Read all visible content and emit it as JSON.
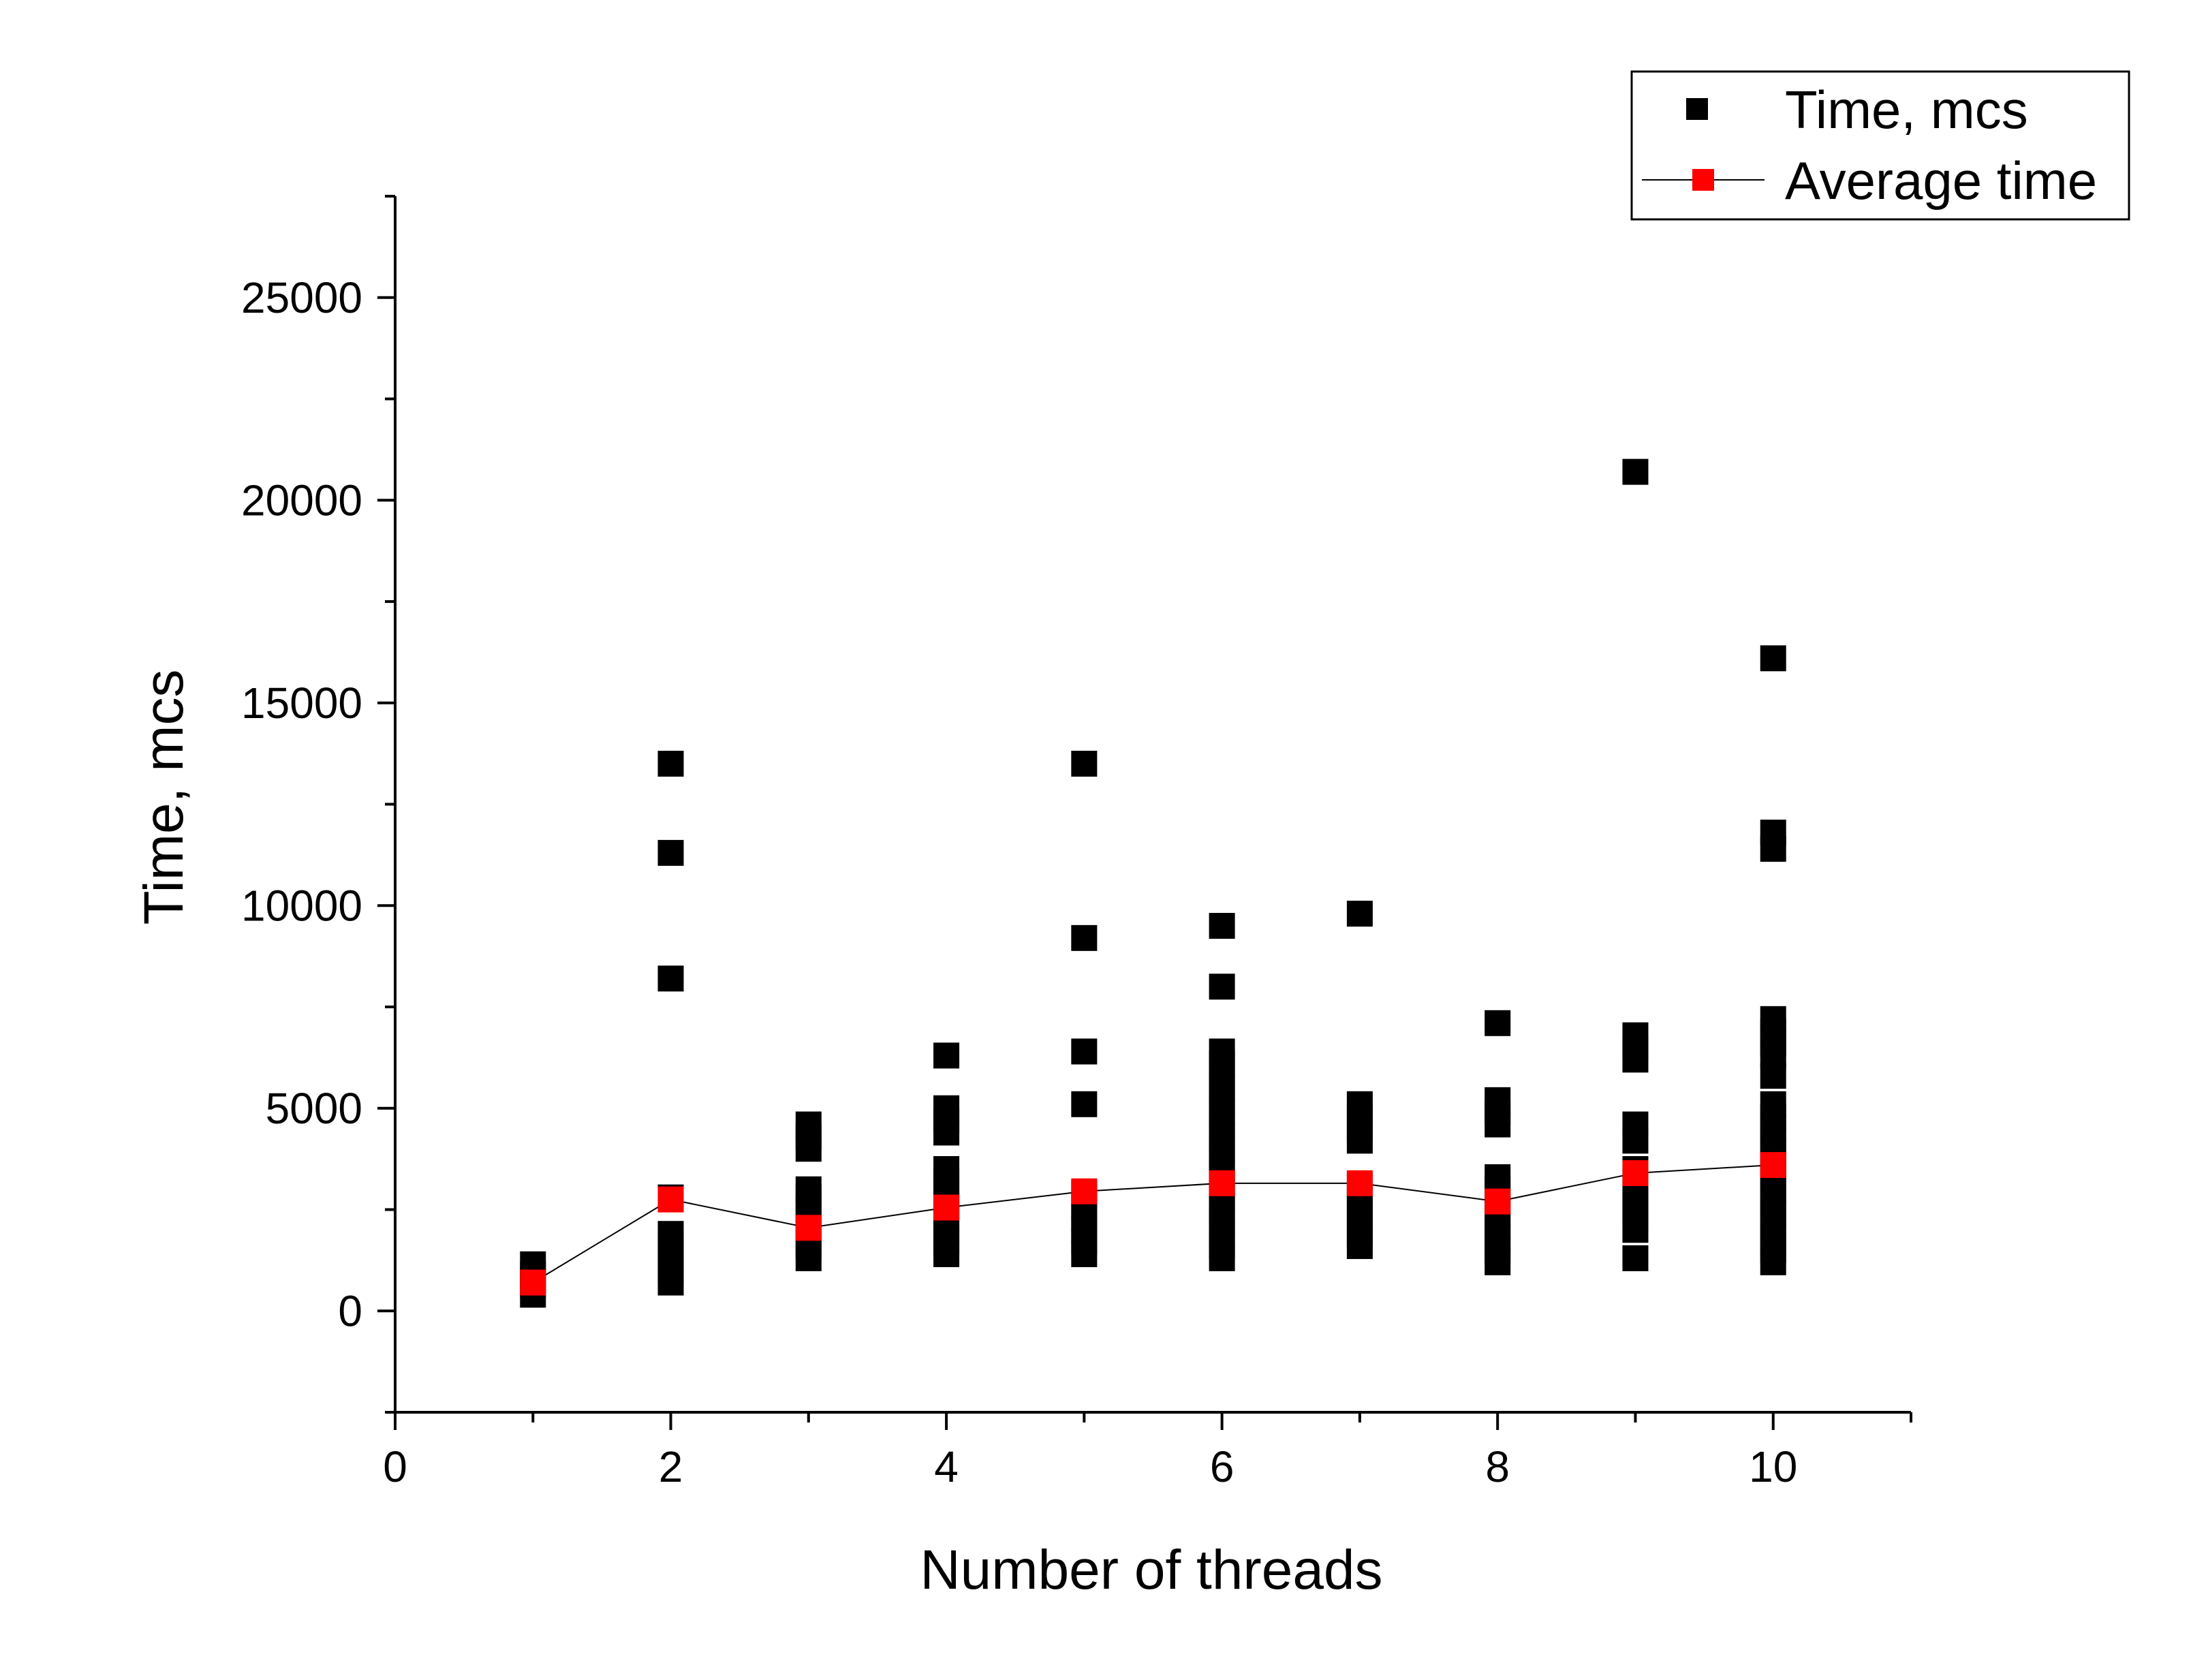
{
  "chart_data": {
    "type": "scatter",
    "title": "",
    "xlabel": "Number of threads",
    "ylabel": "Time, mcs",
    "xlim": [
      0,
      11
    ],
    "ylim": [
      -2500,
      27500
    ],
    "xticks": [
      0,
      2,
      4,
      6,
      8,
      10
    ],
    "xtick_labels": [
      "0",
      "2",
      "4",
      "6",
      "8",
      "10"
    ],
    "yticks": [
      0,
      5000,
      10000,
      15000,
      20000,
      25000
    ],
    "ytick_labels": [
      "0",
      "5000",
      "10000",
      "15000",
      "20000",
      "25000"
    ],
    "grid": false,
    "legend_position": "top-right",
    "series": [
      {
        "name": "Time, mcs",
        "kind": "scatter",
        "color": "#000000",
        "marker": "square",
        "points": [
          [
            1,
            400
          ],
          [
            1,
            650
          ],
          [
            1,
            900
          ],
          [
            1,
            1150
          ],
          [
            2,
            700
          ],
          [
            2,
            1000
          ],
          [
            2,
            1300
          ],
          [
            2,
            1600
          ],
          [
            2,
            1900
          ],
          [
            2,
            2800
          ],
          [
            2,
            8200
          ],
          [
            2,
            11300
          ],
          [
            2,
            13500
          ],
          [
            3,
            1300
          ],
          [
            3,
            1600
          ],
          [
            3,
            1900
          ],
          [
            3,
            2200
          ],
          [
            3,
            2500
          ],
          [
            3,
            2800
          ],
          [
            3,
            3000
          ],
          [
            3,
            4000
          ],
          [
            3,
            4300
          ],
          [
            3,
            4600
          ],
          [
            4,
            1400
          ],
          [
            4,
            1700
          ],
          [
            4,
            2000
          ],
          [
            4,
            2300
          ],
          [
            4,
            2600
          ],
          [
            4,
            2900
          ],
          [
            4,
            3200
          ],
          [
            4,
            3500
          ],
          [
            4,
            4400
          ],
          [
            4,
            4700
          ],
          [
            4,
            5000
          ],
          [
            4,
            6300
          ],
          [
            5,
            1400
          ],
          [
            5,
            1700
          ],
          [
            5,
            2000
          ],
          [
            5,
            2300
          ],
          [
            5,
            2600
          ],
          [
            5,
            2900
          ],
          [
            5,
            5100
          ],
          [
            5,
            6400
          ],
          [
            5,
            9200
          ],
          [
            5,
            13500
          ],
          [
            6,
            1300
          ],
          [
            6,
            1600
          ],
          [
            6,
            1900
          ],
          [
            6,
            2200
          ],
          [
            6,
            2500
          ],
          [
            6,
            2800
          ],
          [
            6,
            3100
          ],
          [
            6,
            3400
          ],
          [
            6,
            3700
          ],
          [
            6,
            4000
          ],
          [
            6,
            4300
          ],
          [
            6,
            4600
          ],
          [
            6,
            4900
          ],
          [
            6,
            5200
          ],
          [
            6,
            5500
          ],
          [
            6,
            5800
          ],
          [
            6,
            6100
          ],
          [
            6,
            6400
          ],
          [
            6,
            8000
          ],
          [
            6,
            9500
          ],
          [
            7,
            1600
          ],
          [
            7,
            1900
          ],
          [
            7,
            2200
          ],
          [
            7,
            2500
          ],
          [
            7,
            2800
          ],
          [
            7,
            3100
          ],
          [
            7,
            4200
          ],
          [
            7,
            4500
          ],
          [
            7,
            4800
          ],
          [
            7,
            5100
          ],
          [
            7,
            9800
          ],
          [
            8,
            1200
          ],
          [
            8,
            1500
          ],
          [
            8,
            1800
          ],
          [
            8,
            2100
          ],
          [
            8,
            2400
          ],
          [
            8,
            2700
          ],
          [
            8,
            3000
          ],
          [
            8,
            3300
          ],
          [
            8,
            4600
          ],
          [
            8,
            4900
          ],
          [
            8,
            5200
          ],
          [
            8,
            7100
          ],
          [
            9,
            1300
          ],
          [
            9,
            2000
          ],
          [
            9,
            2300
          ],
          [
            9,
            2600
          ],
          [
            9,
            2900
          ],
          [
            9,
            3200
          ],
          [
            9,
            3500
          ],
          [
            9,
            4200
          ],
          [
            9,
            4600
          ],
          [
            9,
            6200
          ],
          [
            9,
            6500
          ],
          [
            9,
            6800
          ],
          [
            9,
            20700
          ],
          [
            10,
            1200
          ],
          [
            10,
            1500
          ],
          [
            10,
            1800
          ],
          [
            10,
            2100
          ],
          [
            10,
            2400
          ],
          [
            10,
            2700
          ],
          [
            10,
            3000
          ],
          [
            10,
            3300
          ],
          [
            10,
            3600
          ],
          [
            10,
            3900
          ],
          [
            10,
            4200
          ],
          [
            10,
            4500
          ],
          [
            10,
            4800
          ],
          [
            10,
            5100
          ],
          [
            10,
            5800
          ],
          [
            10,
            6300
          ],
          [
            10,
            6600
          ],
          [
            10,
            6900
          ],
          [
            10,
            7200
          ],
          [
            10,
            11400
          ],
          [
            10,
            11800
          ],
          [
            10,
            16100
          ]
        ]
      },
      {
        "name": "Average time",
        "kind": "line+markers",
        "color": "#ff0000",
        "line_color": "#000000",
        "marker": "square",
        "points": [
          [
            1,
            700
          ],
          [
            2,
            2750
          ],
          [
            3,
            2050
          ],
          [
            4,
            2550
          ],
          [
            5,
            2950
          ],
          [
            6,
            3150
          ],
          [
            7,
            3150
          ],
          [
            8,
            2700
          ],
          [
            9,
            3400
          ],
          [
            10,
            3600
          ]
        ]
      }
    ]
  }
}
